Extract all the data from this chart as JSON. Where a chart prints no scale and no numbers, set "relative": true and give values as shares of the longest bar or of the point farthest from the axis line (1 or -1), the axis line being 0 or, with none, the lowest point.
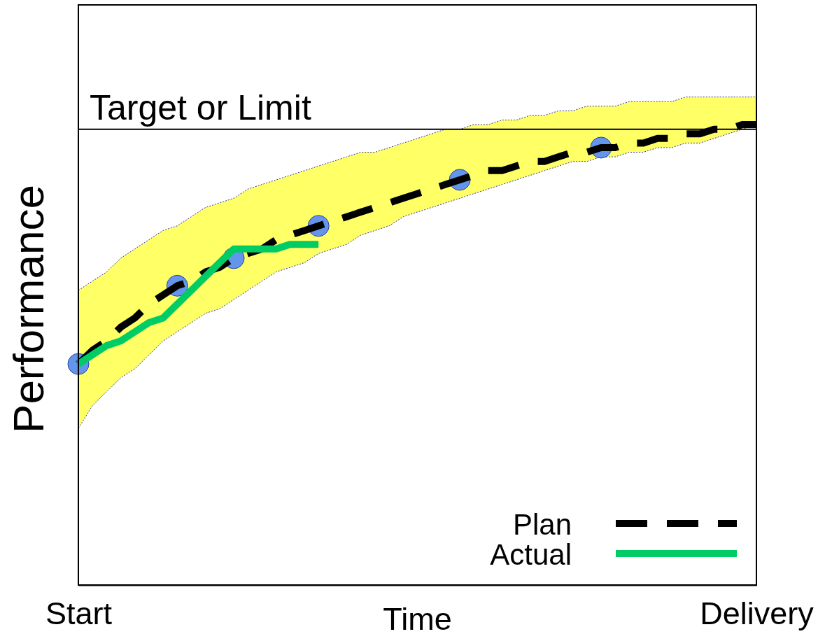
{
  "chart_data": {
    "type": "line",
    "xlabel": "Time",
    "ylabel": "Performance",
    "relative": true,
    "categories": [
      "Start",
      null,
      null,
      null,
      null,
      null,
      null,
      null,
      null,
      null,
      null,
      null,
      null,
      null,
      null,
      null,
      null,
      null,
      null,
      null,
      null,
      null,
      null,
      null,
      null,
      null,
      null,
      null,
      null,
      null,
      null,
      null,
      null,
      null,
      null,
      null,
      null,
      null,
      null,
      null,
      null,
      null,
      null,
      null,
      null,
      null,
      null,
      null,
      "Delivery"
    ],
    "series": [
      {
        "name": "Plan",
        "color": "#000000",
        "line_style": "dashed",
        "values": [
          0.48,
          0.51,
          0.53,
          0.56,
          0.58,
          0.61,
          0.63,
          0.65,
          0.66,
          0.68,
          0.69,
          0.71,
          0.72,
          0.73,
          0.75,
          0.76,
          0.77,
          0.78,
          0.79,
          0.8,
          0.81,
          0.82,
          0.83,
          0.84,
          0.85,
          0.86,
          0.87,
          0.88,
          0.89,
          0.9,
          0.9,
          0.91,
          0.92,
          0.92,
          0.93,
          0.94,
          0.94,
          0.95,
          0.95,
          0.96,
          0.96,
          0.97,
          0.97,
          0.98,
          0.98,
          0.99,
          0.99,
          1,
          1
        ],
        "lower": [
          0.34,
          0.39,
          0.42,
          0.45,
          0.47,
          0.5,
          0.53,
          0.55,
          0.57,
          0.59,
          0.6,
          0.62,
          0.64,
          0.66,
          0.68,
          0.69,
          0.7,
          0.72,
          0.73,
          0.74,
          0.76,
          0.77,
          0.78,
          0.8,
          0.81,
          0.82,
          0.83,
          0.84,
          0.85,
          0.86,
          0.87,
          0.88,
          0.89,
          0.9,
          0.91,
          0.92,
          0.92,
          0.93,
          0.93,
          0.94,
          0.94,
          0.95,
          0.95,
          0.96,
          0.96,
          0.97,
          0.98,
          0.99,
          1
        ],
        "upper": [
          0.64,
          0.66,
          0.68,
          0.71,
          0.73,
          0.75,
          0.77,
          0.78,
          0.8,
          0.82,
          0.83,
          0.84,
          0.86,
          0.87,
          0.88,
          0.89,
          0.9,
          0.91,
          0.92,
          0.93,
          0.94,
          0.94,
          0.95,
          0.96,
          0.97,
          0.98,
          0.99,
          0.99,
          1.0,
          1.0,
          1.01,
          1.01,
          1.02,
          1.02,
          1.03,
          1.03,
          1.04,
          1.04,
          1.04,
          1.05,
          1.05,
          1.05,
          1.05,
          1.06,
          1.06,
          1.06,
          1.06,
          1.06,
          1.06
        ]
      },
      {
        "name": "Actual",
        "color": "#00cc66",
        "values": [
          0.48,
          0.5,
          0.52,
          0.53,
          0.55,
          0.57,
          0.58,
          0.61,
          0.64,
          0.67,
          0.7,
          0.73,
          0.73,
          0.73,
          0.73,
          0.74,
          0.74,
          0.74,
          null,
          null,
          null,
          null,
          null,
          null,
          null,
          null,
          null,
          null,
          null,
          null,
          null,
          null,
          null,
          null,
          null,
          null,
          null,
          null,
          null,
          null,
          null,
          null,
          null,
          null,
          null,
          null,
          null,
          null,
          null
        ]
      },
      {
        "type": "scatter",
        "color": "#6495ed",
        "marker": "circle",
        "values": [
          0.48,
          null,
          null,
          null,
          null,
          null,
          null,
          0.65,
          null,
          null,
          null,
          0.71,
          null,
          null,
          null,
          null,
          null,
          0.78,
          null,
          null,
          null,
          null,
          null,
          null,
          null,
          null,
          null,
          0.88,
          null,
          null,
          null,
          null,
          null,
          null,
          null,
          null,
          null,
          0.95,
          null,
          null,
          null,
          null,
          null,
          null,
          null,
          null,
          null,
          null,
          null
        ]
      }
    ],
    "ref_lines": [
      {
        "axis": "y",
        "value": 0.99,
        "label": "Target or Limit",
        "color": "#000000"
      }
    ],
    "legend": "bottom right"
  }
}
